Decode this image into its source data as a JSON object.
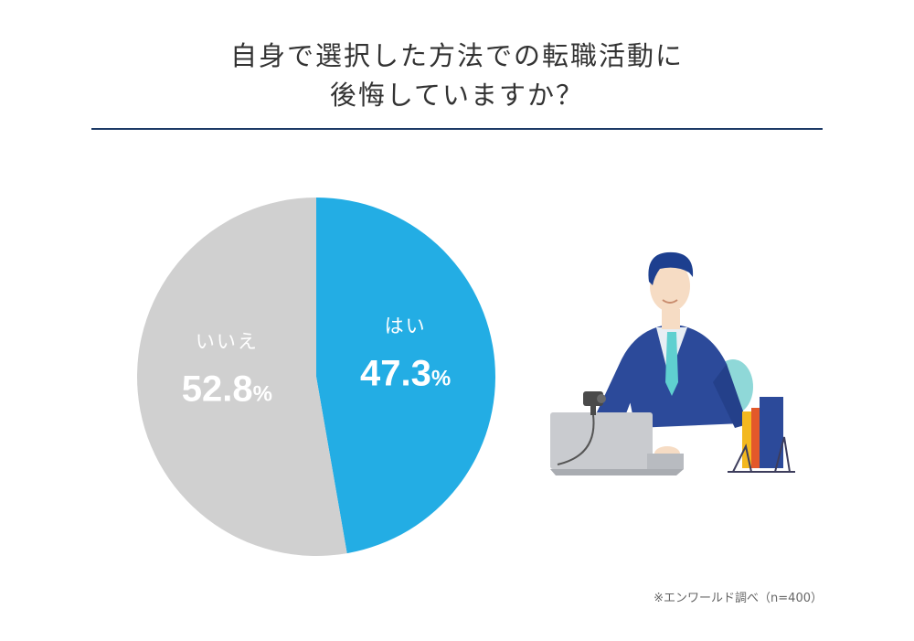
{
  "title": {
    "line1": "自身で選択した方法での転職活動に",
    "line2": "後悔していますか？"
  },
  "source": "※エンワールド調べ（n=400）",
  "colors": {
    "yes": "#23ade4",
    "no": "#d0d0d0",
    "rule": "#1c3a66"
  },
  "chart_data": {
    "type": "pie",
    "slices": [
      {
        "label": "はい",
        "value": 47.3,
        "display": "47.3",
        "unit": "%",
        "color": "#23ade4"
      },
      {
        "label": "いいえ",
        "value": 52.8,
        "display": "52.8",
        "unit": "%",
        "color": "#d0d0d0"
      }
    ],
    "start": "12 o'clock",
    "direction": "clockwise",
    "legend": "none"
  },
  "illustration": "businessman-at-laptop-illustration"
}
